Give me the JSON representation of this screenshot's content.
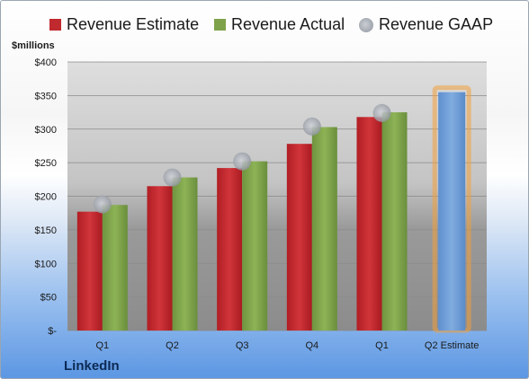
{
  "chart_data": {
    "type": "bar",
    "ylabel": "$millions",
    "ylim": [
      0,
      400
    ],
    "y_ticks": [
      "$-",
      "$50",
      "$100",
      "$150",
      "$200",
      "$250",
      "$300",
      "$350",
      "$400"
    ],
    "categories": [
      "Q1",
      "Q2",
      "Q3",
      "Q4",
      "Q1",
      "Q2 Estimate"
    ],
    "series": [
      {
        "name": "Revenue Estimate",
        "type": "bar",
        "color": "#c0292e",
        "values": [
          177,
          215,
          242,
          278,
          318,
          null
        ]
      },
      {
        "name": "Revenue Actual",
        "type": "bar",
        "color": "#7ea24a",
        "values": [
          187,
          228,
          252,
          303,
          325,
          null
        ]
      },
      {
        "name": "Revenue GAAP",
        "type": "scatter",
        "color": "#a7acb4",
        "values": [
          188,
          228,
          252,
          304,
          324,
          null
        ]
      },
      {
        "name": "Q2 Estimate",
        "type": "bar",
        "color": "#6d9bd6",
        "highlight": "#f2a13c",
        "values": [
          null,
          null,
          null,
          null,
          null,
          355
        ]
      }
    ],
    "legend": "top",
    "grid": true
  },
  "brand": "LinkedIn"
}
